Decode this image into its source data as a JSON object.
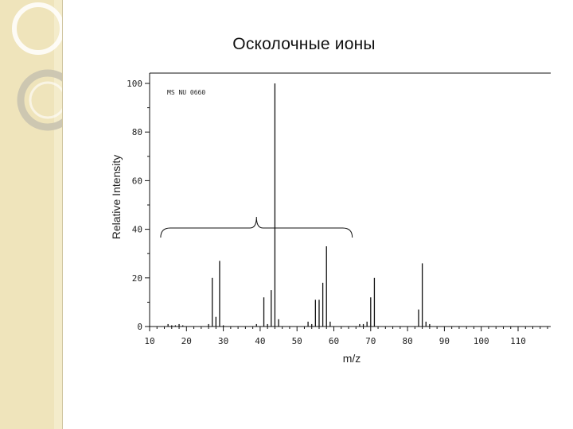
{
  "slide": {
    "title": "Осколочные ионы"
  },
  "chart_data": {
    "type": "bar",
    "title": "Осколочные ионы",
    "xlabel": "m/z",
    "ylabel": "Relative Intensity",
    "annotation": "MS NU 0660",
    "xlim": [
      10,
      118
    ],
    "ylim": [
      0,
      100
    ],
    "xticks": [
      10,
      20,
      30,
      40,
      50,
      60,
      70,
      80,
      90,
      100,
      110
    ],
    "yticks": [
      0,
      20,
      40,
      60,
      80,
      100
    ],
    "grid": false,
    "bracket": {
      "from": 13,
      "to": 65
    },
    "peaks": [
      {
        "mz": 15,
        "intensity": 1
      },
      {
        "mz": 16,
        "intensity": 0.5
      },
      {
        "mz": 17,
        "intensity": 0.5
      },
      {
        "mz": 18,
        "intensity": 1
      },
      {
        "mz": 19,
        "intensity": 0.5
      },
      {
        "mz": 26,
        "intensity": 1
      },
      {
        "mz": 27,
        "intensity": 20
      },
      {
        "mz": 28,
        "intensity": 4
      },
      {
        "mz": 29,
        "intensity": 27
      },
      {
        "mz": 30,
        "intensity": 0.5
      },
      {
        "mz": 39,
        "intensity": 1
      },
      {
        "mz": 41,
        "intensity": 12
      },
      {
        "mz": 42,
        "intensity": 1
      },
      {
        "mz": 43,
        "intensity": 15
      },
      {
        "mz": 44,
        "intensity": 100
      },
      {
        "mz": 45,
        "intensity": 3
      },
      {
        "mz": 53,
        "intensity": 2
      },
      {
        "mz": 54,
        "intensity": 1
      },
      {
        "mz": 55,
        "intensity": 11
      },
      {
        "mz": 56,
        "intensity": 11
      },
      {
        "mz": 57,
        "intensity": 18
      },
      {
        "mz": 58,
        "intensity": 33
      },
      {
        "mz": 59,
        "intensity": 2
      },
      {
        "mz": 67,
        "intensity": 1
      },
      {
        "mz": 68,
        "intensity": 1
      },
      {
        "mz": 69,
        "intensity": 2
      },
      {
        "mz": 70,
        "intensity": 12
      },
      {
        "mz": 71,
        "intensity": 20
      },
      {
        "mz": 83,
        "intensity": 7
      },
      {
        "mz": 84,
        "intensity": 26
      },
      {
        "mz": 85,
        "intensity": 2
      },
      {
        "mz": 86,
        "intensity": 1
      }
    ]
  }
}
